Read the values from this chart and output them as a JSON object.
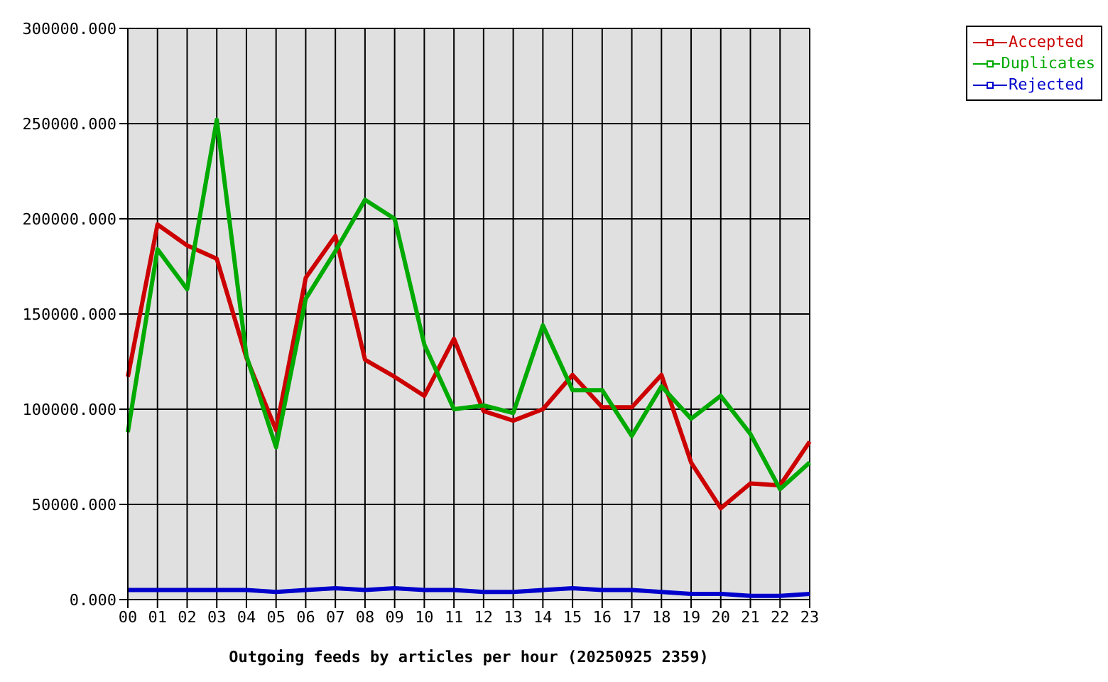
{
  "chart_data": {
    "type": "line",
    "xlabel": "Outgoing feeds by articles per hour (20250925 2359)",
    "categories": [
      "00",
      "01",
      "02",
      "03",
      "04",
      "05",
      "06",
      "07",
      "08",
      "09",
      "10",
      "11",
      "12",
      "13",
      "14",
      "15",
      "16",
      "17",
      "18",
      "19",
      "20",
      "21",
      "22",
      "23"
    ],
    "series": [
      {
        "name": "Accepted",
        "color": "#cc0000",
        "values": [
          117000,
          197000,
          186000,
          179000,
          127000,
          89000,
          169000,
          191000,
          126000,
          117000,
          107000,
          137000,
          99000,
          94000,
          100000,
          118000,
          101000,
          101000,
          118000,
          72000,
          48000,
          61000,
          60000,
          83000
        ]
      },
      {
        "name": "Duplicates",
        "color": "#00aa00",
        "values": [
          88000,
          184000,
          163000,
          252000,
          128000,
          80000,
          158000,
          183000,
          210000,
          200000,
          134000,
          100000,
          102000,
          98000,
          144000,
          110000,
          110000,
          86000,
          112000,
          95000,
          107000,
          87000,
          58000,
          72000
        ]
      },
      {
        "name": "Rejected",
        "color": "#0000cc",
        "values": [
          5000,
          5000,
          5000,
          5000,
          5000,
          4000,
          5000,
          6000,
          5000,
          6000,
          5000,
          5000,
          4000,
          4000,
          5000,
          6000,
          5000,
          5000,
          4000,
          3000,
          3000,
          2000,
          2000,
          3000
        ]
      }
    ],
    "ylim": [
      0,
      300000
    ],
    "yticks": [
      {
        "value": 0,
        "label": "0.000"
      },
      {
        "value": 50000,
        "label": "50000.000"
      },
      {
        "value": 100000,
        "label": "100000.000"
      },
      {
        "value": 150000,
        "label": "150000.000"
      },
      {
        "value": 200000,
        "label": "200000.000"
      },
      {
        "value": 250000,
        "label": "250000.000"
      },
      {
        "value": 300000,
        "label": "300000.000"
      }
    ],
    "grid": true,
    "legend": "top right"
  }
}
